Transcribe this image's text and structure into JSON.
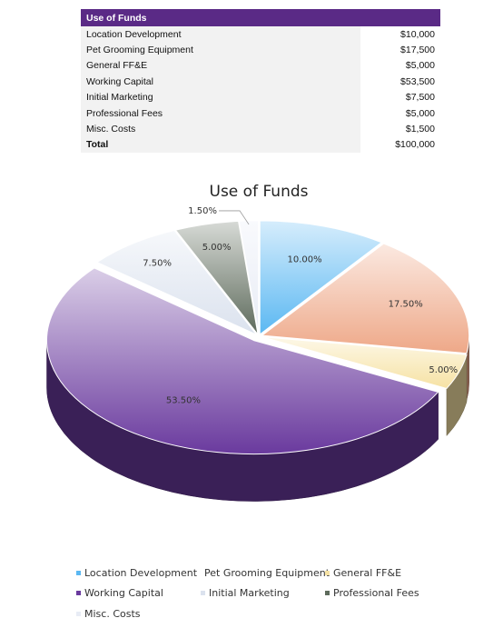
{
  "table": {
    "header": "Use of Funds",
    "rows": [
      {
        "label": "Location Development",
        "amount": "$10,000"
      },
      {
        "label": "Pet Grooming Equipment",
        "amount": "$17,500"
      },
      {
        "label": "General FF&E",
        "amount": "$5,000"
      },
      {
        "label": "Working Capital",
        "amount": "$53,500"
      },
      {
        "label": "Initial Marketing",
        "amount": "$7,500"
      },
      {
        "label": "Professional Fees",
        "amount": "$5,000"
      },
      {
        "label": "Misc. Costs",
        "amount": "$1,500"
      }
    ],
    "total": {
      "label": "Total",
      "amount": "$100,000"
    }
  },
  "chart_data": {
    "type": "pie",
    "title": "Use of Funds",
    "categories": [
      "Location Development",
      "Pet Grooming Equipment",
      "General FF&E",
      "Working Capital",
      "Initial Marketing",
      "Professional Fees",
      "Misc. Costs"
    ],
    "values": [
      10.0,
      17.5,
      5.0,
      53.5,
      7.5,
      5.0,
      1.5
    ],
    "data_labels": [
      "10.00%",
      "17.50%",
      "5.00%",
      "53.50%",
      "7.50%",
      "5.00%",
      "1.50%"
    ],
    "colors": [
      "#5bb8f2",
      "#eea888",
      "#f6e2a4",
      "#6a3a9e",
      "#dbe2ee",
      "#5e6b5c",
      "#e8ecf5"
    ],
    "legend_position": "bottom",
    "style": "3d-exploded-pie"
  }
}
